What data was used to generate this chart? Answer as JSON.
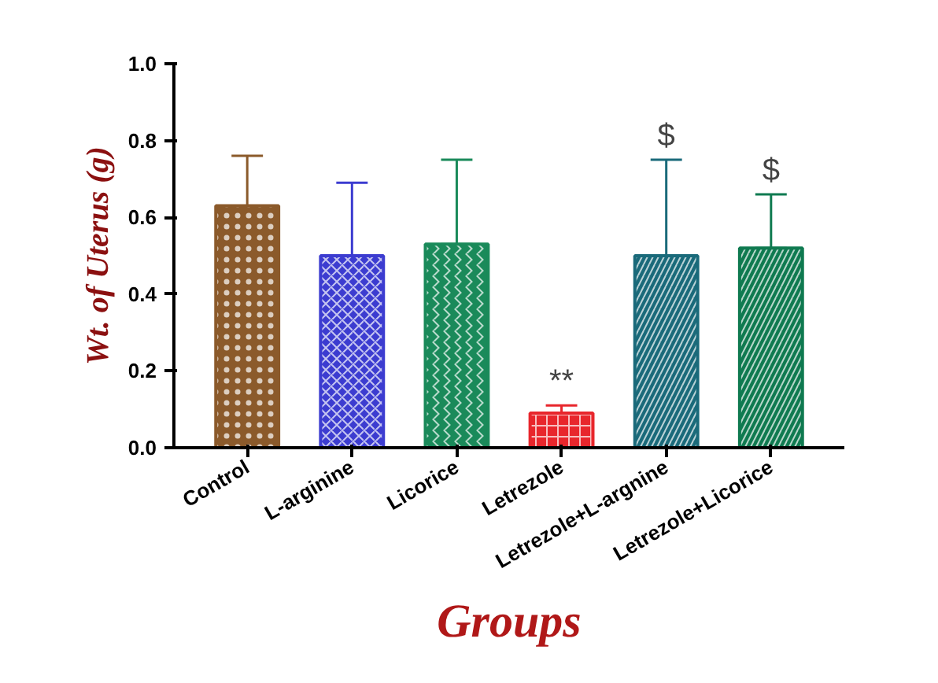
{
  "chart_data": {
    "type": "bar",
    "xlabel": "Groups",
    "ylabel": "Wt. of Uterus (g)",
    "categories": [
      "Control",
      "L-arginine",
      "Licorice",
      "Letrezole",
      "Letrezole+L-argnine",
      "Letrezole+Licorice"
    ],
    "values": [
      0.63,
      0.5,
      0.53,
      0.09,
      0.5,
      0.52
    ],
    "errors": [
      [
        0.63,
        0.76
      ],
      [
        0.5,
        0.69
      ],
      [
        0.53,
        0.75
      ],
      [
        0.09,
        0.11
      ],
      [
        0.5,
        0.75
      ],
      [
        0.52,
        0.66
      ]
    ],
    "colors": [
      "#8b5a2b",
      "#3c3cd0",
      "#1a8a5a",
      "#e8262c",
      "#1a6a7a",
      "#0f7a50"
    ],
    "ylim": [
      0,
      1.0
    ],
    "yticks": [
      {
        "value": 0,
        "label": "0.0"
      },
      0.2,
      0.4,
      0.6,
      0.8,
      {
        "value": 1.0,
        "label": "1.0"
      }
    ],
    "grid": false,
    "annotations": [
      {
        "text": "**",
        "x": "Letrezole",
        "y": 0.11
      },
      {
        "text": "$",
        "x": "Letrezole+L-argnine",
        "y": 0.75
      },
      {
        "text": "$",
        "x": "Letrezole+Licorice",
        "y": 0.66
      }
    ]
  }
}
